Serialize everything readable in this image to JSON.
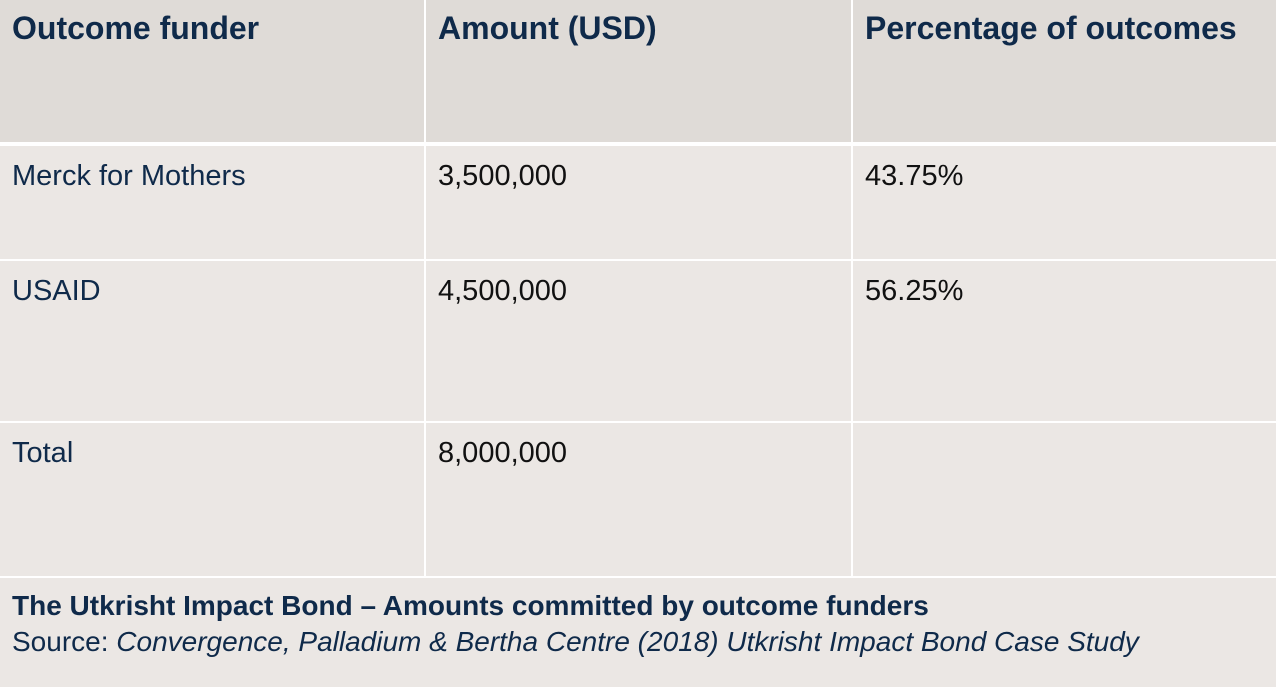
{
  "table": {
    "headers": [
      "Outcome funder",
      "Amount (USD)",
      "Percentage of outcomes"
    ],
    "rows": [
      {
        "funder": "Merck for Mothers",
        "amount": "3,500,000",
        "percentage": "43.75%"
      },
      {
        "funder": "USAID",
        "amount": "4,500,000",
        "percentage": "56.25%"
      },
      {
        "funder": "Total",
        "amount": "8,000,000",
        "percentage": ""
      }
    ]
  },
  "caption": {
    "title": "The Utkrisht Impact Bond – Amounts committed by outcome funders",
    "source_prefix": "Source: ",
    "source_title": "Convergence, Palladium & Bertha Centre (2018) Utkrisht Impact Bond Case Study"
  },
  "colors": {
    "header_bg": "#dfdbd7",
    "body_bg": "#ebe7e4",
    "navy_text": "#0f2a4a",
    "grid_lines": "#ffffff"
  }
}
